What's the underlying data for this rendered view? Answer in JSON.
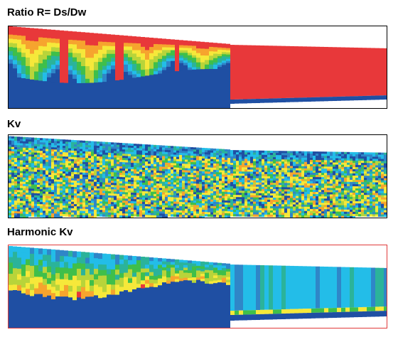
{
  "panels": [
    {
      "key": "ratio",
      "title": "Ratio R= Ds/Dw"
    },
    {
      "key": "kv",
      "title": "Kv"
    },
    {
      "key": "hkv",
      "title": "Harmonic Kv"
    }
  ],
  "colors": {
    "deep_blue": "#1f4fa3",
    "blue": "#2f86c8",
    "cyan": "#23bde8",
    "teal": "#2bb39a",
    "green": "#3fbf4a",
    "yellow_green": "#b8d43a",
    "yellow": "#f6e83a",
    "orange": "#f6a42e",
    "red": "#e8383a",
    "frame_red": "#e03a3a"
  }
}
